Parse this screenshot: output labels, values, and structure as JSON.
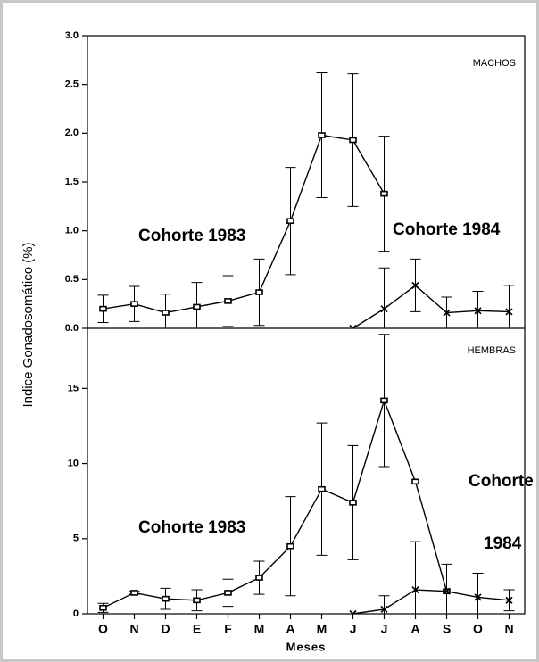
{
  "chart_data": [
    {
      "type": "line",
      "title": "MACHOS",
      "ylabel": "Indice Gonadosomático (%)",
      "ylim": [
        0,
        3
      ],
      "yticks": [
        {
          "value": 0,
          "label": "0.0"
        },
        0.5,
        {
          "value": 1,
          "label": "1.0"
        },
        1.5,
        {
          "value": 2,
          "label": "2.0"
        },
        2.5,
        {
          "value": 3,
          "label": "3.0"
        }
      ],
      "annotations": [
        "Cohorte 1983",
        "Cohorte 1984"
      ],
      "series": [
        {
          "name": "Cohorte 1983",
          "color": "#000000",
          "values": [
            0.2,
            0.25,
            0.16,
            0.22,
            0.28,
            0.37,
            1.1,
            1.98,
            1.93,
            1.38,
            null,
            null,
            null,
            null
          ],
          "errors": [
            0.14,
            0.18,
            0.19,
            0.25,
            0.26,
            0.34,
            0.55,
            0.64,
            0.68,
            0.59,
            null,
            null,
            null,
            null
          ]
        },
        {
          "name": "Cohorte 1984",
          "color": "#000000",
          "values": [
            null,
            null,
            null,
            null,
            null,
            null,
            null,
            null,
            0.0,
            0.2,
            0.44,
            0.16,
            0.18,
            0.17
          ],
          "errors": [
            null,
            null,
            null,
            null,
            null,
            null,
            null,
            null,
            null,
            0.42,
            0.27,
            0.16,
            0.2,
            0.27
          ]
        }
      ]
    },
    {
      "type": "line",
      "title": "HEMBRAS",
      "xlabel": "Meses",
      "categories": [
        "O",
        "N",
        "D",
        "E",
        "F",
        "M",
        "A",
        "M",
        "J",
        "J",
        "A",
        "S",
        "O",
        "N"
      ],
      "ylim": [
        0,
        19
      ],
      "yticks": [
        0,
        5,
        10,
        15
      ],
      "annotations": [
        "Cohorte 1983",
        "Cohorte",
        "1984"
      ],
      "series": [
        {
          "name": "Cohorte 1983",
          "color": "#000000",
          "values": [
            0.4,
            1.4,
            1.0,
            0.9,
            1.4,
            2.4,
            4.5,
            8.3,
            7.4,
            14.2,
            8.8,
            1.5,
            null,
            null
          ],
          "errors": [
            0.3,
            0.1,
            0.7,
            0.7,
            0.9,
            1.1,
            3.3,
            4.4,
            3.8,
            4.4,
            null,
            1.8,
            null,
            null
          ]
        },
        {
          "name": "Cohorte 1984",
          "color": "#000000",
          "values": [
            null,
            null,
            null,
            null,
            null,
            null,
            null,
            null,
            0.0,
            0.3,
            1.6,
            1.5,
            1.1,
            0.9
          ],
          "errors": [
            null,
            null,
            null,
            null,
            null,
            null,
            null,
            null,
            null,
            0.9,
            3.2,
            null,
            1.6,
            0.7
          ]
        }
      ]
    }
  ]
}
